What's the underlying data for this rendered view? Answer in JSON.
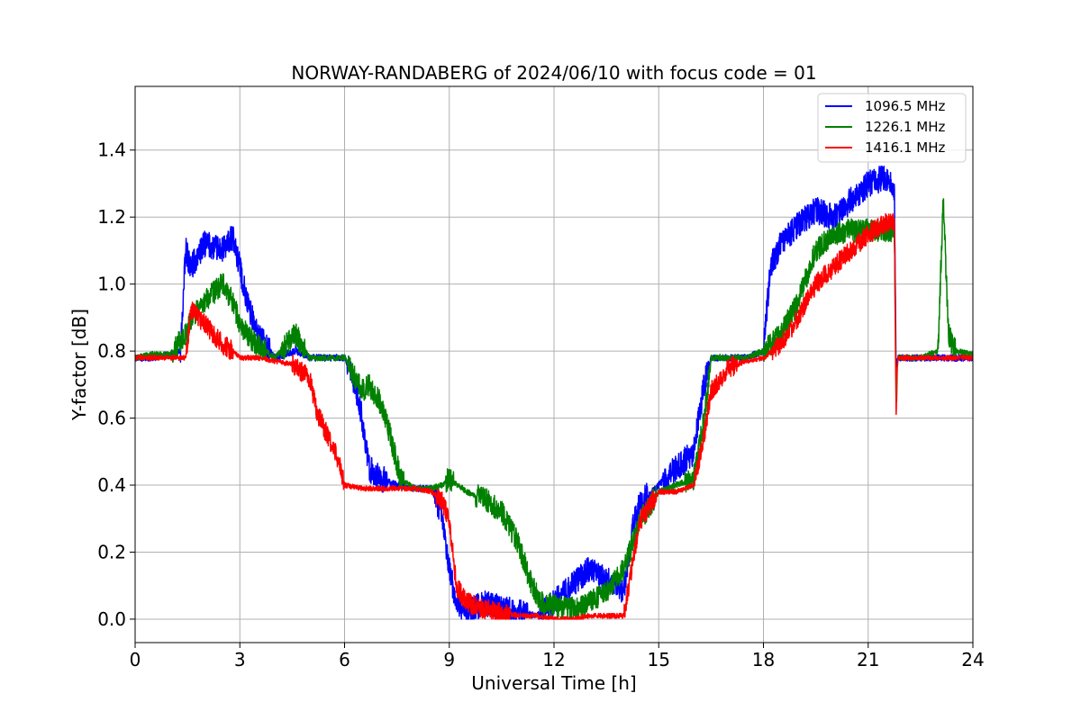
{
  "chart_data": {
    "type": "line",
    "title": "NORWAY-RANDABERG of 2024/06/10 with focus code = 01",
    "xlabel": "Universal Time [h]",
    "ylabel": "Y-factor [dB]",
    "xlim": [
      0,
      24
    ],
    "ylim": [
      -0.07,
      1.59
    ],
    "xticks": [
      0,
      3,
      6,
      9,
      12,
      15,
      18,
      21,
      24
    ],
    "xtick_labels": [
      "0",
      "3",
      "6",
      "9",
      "12",
      "15",
      "18",
      "21",
      "24"
    ],
    "yticks": [
      0.0,
      0.2,
      0.4,
      0.6,
      0.8,
      1.0,
      1.2,
      1.4
    ],
    "ytick_labels": [
      "0.0",
      "0.2",
      "0.4",
      "0.6",
      "0.8",
      "1.0",
      "1.2",
      "1.4"
    ],
    "grid": true,
    "legend_position": "top-right",
    "series": [
      {
        "name": "1096.5 MHz",
        "color": "#0000ff",
        "x": [
          0,
          0.5,
          1.0,
          1.3,
          1.45,
          1.6,
          2.0,
          2.5,
          2.8,
          3.0,
          3.2,
          3.5,
          4.0,
          4.6,
          5.0,
          6.0,
          6.3,
          6.5,
          6.7,
          7.0,
          7.5,
          8.0,
          8.5,
          8.8,
          9.0,
          9.2,
          9.5,
          10.0,
          10.5,
          11.0,
          11.5,
          12.0,
          12.5,
          13.0,
          13.5,
          14.0,
          14.3,
          14.5,
          15.0,
          15.5,
          16.0,
          16.3,
          16.5,
          17.0,
          17.5,
          18.0,
          18.2,
          18.5,
          19.0,
          19.5,
          20.0,
          20.5,
          21.0,
          21.5,
          21.75,
          21.8,
          21.85,
          22.0,
          22.5,
          23.0,
          23.5,
          24.0
        ],
        "y": [
          0.78,
          0.78,
          0.79,
          0.8,
          1.1,
          1.05,
          1.12,
          1.1,
          1.14,
          1.05,
          0.95,
          0.85,
          0.78,
          0.8,
          0.78,
          0.78,
          0.7,
          0.6,
          0.45,
          0.42,
          0.4,
          0.39,
          0.39,
          0.3,
          0.15,
          0.05,
          0.02,
          0.05,
          0.03,
          0.02,
          0.01,
          0.05,
          0.1,
          0.15,
          0.12,
          0.08,
          0.3,
          0.35,
          0.4,
          0.45,
          0.5,
          0.7,
          0.78,
          0.78,
          0.78,
          0.8,
          1.05,
          1.12,
          1.18,
          1.22,
          1.2,
          1.25,
          1.3,
          1.32,
          1.28,
          0.75,
          0.78,
          0.78,
          0.78,
          0.78,
          0.78,
          0.78
        ],
        "noise_amplitude": 0.04
      },
      {
        "name": "1226.1 MHz",
        "color": "#008000",
        "x": [
          0,
          0.5,
          1.0,
          1.45,
          1.6,
          2.0,
          2.5,
          2.8,
          3.0,
          3.2,
          3.5,
          4.0,
          4.6,
          5.0,
          6.0,
          6.3,
          6.5,
          6.7,
          7.0,
          7.3,
          7.6,
          8.0,
          8.5,
          8.8,
          9.0,
          9.5,
          10.0,
          10.5,
          11.0,
          11.3,
          11.6,
          12.0,
          12.5,
          13.0,
          13.5,
          14.0,
          14.5,
          15.0,
          15.5,
          16.0,
          16.3,
          16.5,
          17.0,
          17.5,
          18.0,
          18.5,
          19.0,
          19.5,
          20.0,
          20.5,
          21.0,
          21.5,
          21.75,
          21.8,
          21.85,
          22.0,
          22.5,
          23.0,
          23.15,
          23.3,
          23.5,
          24.0
        ],
        "y": [
          0.78,
          0.79,
          0.79,
          0.85,
          0.9,
          0.95,
          1.0,
          0.95,
          0.88,
          0.85,
          0.82,
          0.78,
          0.85,
          0.78,
          0.78,
          0.72,
          0.68,
          0.7,
          0.65,
          0.55,
          0.42,
          0.39,
          0.39,
          0.4,
          0.42,
          0.38,
          0.36,
          0.32,
          0.22,
          0.12,
          0.05,
          0.04,
          0.03,
          0.05,
          0.08,
          0.15,
          0.3,
          0.38,
          0.4,
          0.42,
          0.6,
          0.78,
          0.78,
          0.78,
          0.8,
          0.85,
          0.95,
          1.1,
          1.15,
          1.16,
          1.16,
          1.16,
          1.16,
          0.63,
          0.78,
          0.78,
          0.78,
          0.8,
          1.25,
          0.85,
          0.8,
          0.79
        ],
        "noise_amplitude": 0.035
      },
      {
        "name": "1416.1 MHz",
        "color": "#ff0000",
        "x": [
          0,
          0.5,
          1.0,
          1.45,
          1.6,
          2.0,
          2.5,
          2.8,
          3.0,
          3.5,
          4.0,
          4.5,
          5.0,
          5.2,
          5.5,
          5.8,
          6.0,
          6.5,
          7.0,
          7.5,
          8.0,
          8.5,
          8.8,
          9.0,
          9.2,
          9.5,
          10.0,
          10.5,
          11.0,
          11.5,
          12.0,
          12.5,
          13.0,
          13.5,
          14.0,
          14.3,
          14.5,
          14.8,
          15.0,
          15.5,
          16.0,
          16.3,
          16.5,
          17.0,
          17.5,
          18.0,
          18.5,
          19.0,
          19.5,
          20.0,
          20.5,
          21.0,
          21.5,
          21.75,
          21.8,
          21.85,
          22.0,
          22.5,
          23.0,
          23.5,
          24.0
        ],
        "y": [
          0.78,
          0.78,
          0.78,
          0.78,
          0.92,
          0.88,
          0.82,
          0.8,
          0.78,
          0.78,
          0.77,
          0.76,
          0.72,
          0.62,
          0.55,
          0.48,
          0.4,
          0.39,
          0.39,
          0.39,
          0.39,
          0.38,
          0.35,
          0.3,
          0.1,
          0.05,
          0.03,
          0.02,
          0.01,
          0.01,
          0.0,
          0.0,
          0.01,
          0.01,
          0.01,
          0.2,
          0.3,
          0.35,
          0.38,
          0.38,
          0.4,
          0.55,
          0.68,
          0.75,
          0.77,
          0.78,
          0.82,
          0.9,
          1.0,
          1.05,
          1.1,
          1.15,
          1.18,
          1.18,
          0.64,
          0.78,
          0.78,
          0.78,
          0.78,
          0.78,
          0.78
        ],
        "noise_amplitude": 0.03
      }
    ]
  }
}
